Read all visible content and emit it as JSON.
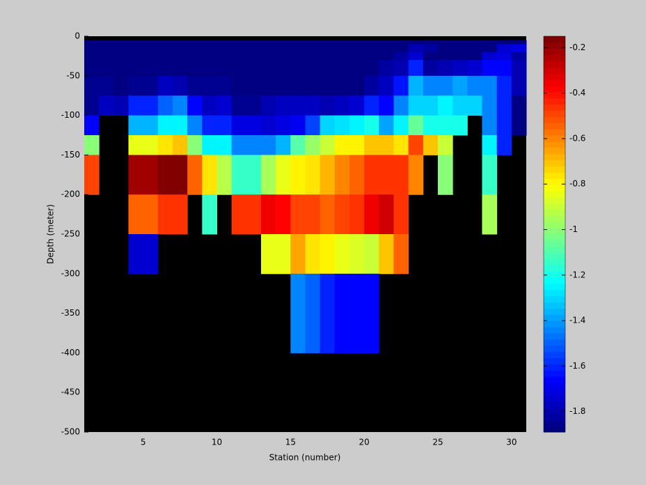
{
  "chart_data": {
    "type": "heatmap",
    "xlabel": "Station (number)",
    "ylabel": "Depth (meter)",
    "x_edges": [
      1,
      2,
      3,
      4,
      5,
      6,
      7,
      8,
      9,
      10,
      11,
      12,
      13,
      14,
      15,
      16,
      17,
      18,
      19,
      20,
      21,
      22,
      23,
      24,
      25,
      26,
      27,
      28,
      29,
      30,
      31
    ],
    "y_edges": [
      0,
      -5,
      -10,
      -20,
      -30,
      -50,
      -75,
      -100,
      -125,
      -150,
      -200,
      -250,
      -300,
      -400,
      -500
    ],
    "values": [
      [
        null,
        null,
        null,
        null,
        null,
        null,
        null,
        null,
        null,
        null,
        null,
        null,
        null,
        null,
        null,
        null,
        null,
        null,
        null,
        null,
        null,
        null,
        null,
        null,
        null,
        null,
        null,
        null,
        null,
        null
      ],
      [
        -1.88,
        -1.88,
        -1.88,
        -1.88,
        -1.88,
        -1.88,
        -1.88,
        -1.88,
        -1.88,
        -1.88,
        -1.88,
        -1.88,
        -1.88,
        -1.88,
        -1.88,
        -1.88,
        -1.88,
        -1.88,
        -1.88,
        -1.88,
        -1.88,
        -1.88,
        -1.88,
        -1.88,
        -1.88,
        -1.88,
        -1.88,
        -1.88,
        -1.88,
        -1.88
      ],
      [
        -1.88,
        -1.88,
        -1.88,
        -1.88,
        -1.88,
        -1.88,
        -1.88,
        -1.88,
        -1.88,
        -1.88,
        -1.88,
        -1.88,
        -1.88,
        -1.88,
        -1.88,
        -1.88,
        -1.88,
        -1.88,
        -1.88,
        -1.88,
        -1.88,
        -1.88,
        -1.8,
        -1.82,
        -1.88,
        -1.88,
        -1.88,
        -1.88,
        -1.75,
        -1.7
      ],
      [
        -1.88,
        -1.88,
        -1.88,
        -1.88,
        -1.88,
        -1.88,
        -1.88,
        -1.88,
        -1.88,
        -1.88,
        -1.88,
        -1.88,
        -1.88,
        -1.88,
        -1.88,
        -1.88,
        -1.88,
        -1.88,
        -1.88,
        -1.88,
        -1.88,
        -1.82,
        -1.75,
        -1.88,
        -1.88,
        -1.88,
        -1.88,
        -1.75,
        -1.7,
        -1.82
      ],
      [
        -1.88,
        -1.88,
        -1.88,
        -1.88,
        -1.88,
        -1.88,
        -1.88,
        -1.88,
        -1.88,
        -1.88,
        -1.88,
        -1.88,
        -1.88,
        -1.88,
        -1.88,
        -1.88,
        -1.88,
        -1.88,
        -1.88,
        -1.88,
        -1.82,
        -1.8,
        -1.6,
        -1.82,
        -1.8,
        -1.78,
        -1.75,
        -1.65,
        -1.65,
        -1.8
      ],
      [
        -1.85,
        -1.85,
        -1.88,
        -1.85,
        -1.85,
        -1.78,
        -1.8,
        -1.85,
        -1.85,
        -1.85,
        -1.88,
        -1.88,
        -1.88,
        -1.88,
        -1.88,
        -1.88,
        -1.88,
        -1.88,
        -1.88,
        -1.82,
        -1.78,
        -1.62,
        -1.35,
        -1.45,
        -1.45,
        -1.4,
        -1.45,
        -1.45,
        -1.6,
        -1.8
      ],
      [
        -1.85,
        -1.78,
        -1.8,
        -1.6,
        -1.6,
        -1.5,
        -1.45,
        -1.65,
        -1.78,
        -1.75,
        -1.85,
        -1.85,
        -1.8,
        -1.78,
        -1.78,
        -1.78,
        -1.8,
        -1.78,
        -1.75,
        -1.6,
        -1.65,
        -1.45,
        -1.3,
        -1.3,
        -1.25,
        -1.3,
        -1.3,
        -1.45,
        -1.6,
        -1.88
      ],
      [
        -1.65,
        null,
        null,
        -1.35,
        -1.35,
        -1.25,
        -1.25,
        -1.45,
        -1.6,
        -1.6,
        -1.7,
        -1.7,
        -1.75,
        -1.72,
        -1.68,
        -1.55,
        -1.3,
        -1.28,
        -1.25,
        -1.2,
        -1.4,
        -1.25,
        -1.05,
        -1.2,
        -1.2,
        -1.2,
        null,
        -1.45,
        -1.6,
        -1.88
      ],
      [
        -1.0,
        null,
        null,
        -0.85,
        -0.85,
        -0.75,
        -0.7,
        -1.0,
        -1.25,
        -1.25,
        -1.45,
        -1.45,
        -1.45,
        -1.35,
        -1.1,
        -0.98,
        -0.9,
        -0.8,
        -0.8,
        -0.7,
        -0.7,
        -0.75,
        -0.5,
        -0.7,
        -0.9,
        null,
        null,
        -1.25,
        -1.6,
        null
      ],
      [
        -0.5,
        null,
        null,
        -0.22,
        -0.22,
        -0.17,
        -0.17,
        -0.55,
        -0.75,
        -0.92,
        -1.15,
        -1.15,
        -0.95,
        -0.85,
        -0.8,
        -0.75,
        -0.68,
        -0.6,
        -0.55,
        -0.45,
        -0.45,
        -0.45,
        -0.6,
        null,
        -1.0,
        null,
        null,
        -1.15,
        null,
        null
      ],
      [
        null,
        null,
        null,
        -0.55,
        -0.55,
        -0.45,
        -0.45,
        null,
        -1.15,
        null,
        -0.45,
        -0.45,
        -0.35,
        -0.38,
        -0.5,
        -0.5,
        -0.55,
        -0.5,
        -0.45,
        -0.35,
        -0.3,
        -0.45,
        null,
        null,
        null,
        null,
        null,
        -0.95,
        null,
        null
      ],
      [
        null,
        null,
        null,
        -1.75,
        -1.75,
        null,
        null,
        null,
        null,
        null,
        null,
        null,
        -0.85,
        -0.85,
        -0.65,
        -0.75,
        -0.8,
        -0.85,
        -0.88,
        -0.9,
        -0.7,
        -0.55,
        null,
        null,
        null,
        null,
        null,
        null,
        null,
        null
      ],
      [
        null,
        null,
        null,
        null,
        null,
        null,
        null,
        null,
        null,
        null,
        null,
        null,
        null,
        null,
        -1.45,
        -1.5,
        -1.6,
        -1.65,
        -1.65,
        -1.65,
        null,
        null,
        null,
        null,
        null,
        null,
        null,
        null,
        null,
        null
      ],
      [
        null,
        null,
        null,
        null,
        null,
        null,
        null,
        null,
        null,
        null,
        null,
        null,
        null,
        null,
        null,
        null,
        null,
        null,
        null,
        null,
        null,
        null,
        null,
        null,
        null,
        null,
        null,
        null,
        null,
        null
      ]
    ],
    "xlim": [
      1,
      31
    ],
    "xticks": [
      5,
      10,
      15,
      20,
      25,
      30
    ],
    "ylim": [
      -500,
      0
    ],
    "yticks": [
      -500,
      -450,
      -400,
      -350,
      -300,
      -250,
      -200,
      -150,
      -100,
      -50,
      0
    ],
    "colormap": "jet",
    "colormap_steps": 64,
    "clim": [
      -1.89,
      -0.15
    ],
    "colorbar_ticks": [
      -1.8,
      -1.6,
      -1.4,
      -1.2,
      -1,
      -0.8,
      -0.6,
      -0.4,
      -0.2
    ],
    "missing_color": "#000000"
  }
}
